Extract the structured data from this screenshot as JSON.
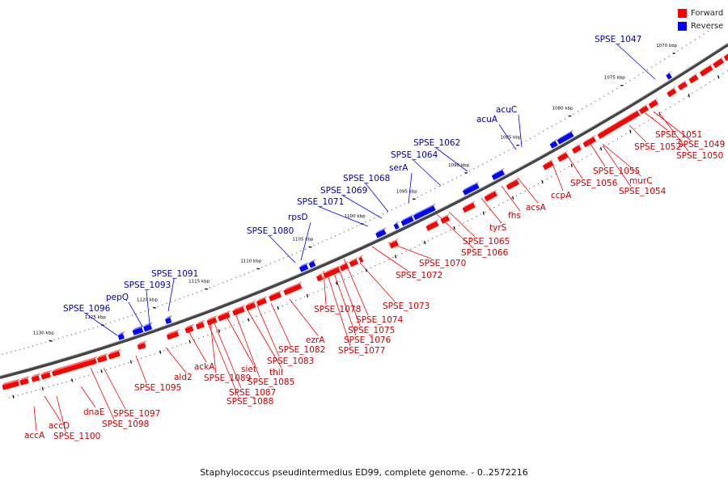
{
  "caption": "Staphylococcus pseudintermedius ED99, complete genome. - 0..2572216",
  "legend": [
    {
      "label": "Forward",
      "color": "#ff0000"
    },
    {
      "label": "Reverse",
      "color": "#0000ff"
    }
  ],
  "colors": {
    "forward": "#ff0000",
    "reverse": "#0000ff",
    "backbone": "#666666",
    "label_forward": "#cc0000",
    "label_reverse": "#0000aa"
  },
  "ticks": [
    {
      "label": "1070 kbp",
      "kbp": 1070
    },
    {
      "label": "1075 kbp",
      "kbp": 1075
    },
    {
      "label": "1080 kbp",
      "kbp": 1080
    },
    {
      "label": "1085 kbp",
      "kbp": 1085
    },
    {
      "label": "1090 kbp",
      "kbp": 1090
    },
    {
      "label": "1095 kbp",
      "kbp": 1095
    },
    {
      "label": "1100 kbp",
      "kbp": 1100
    },
    {
      "label": "1105 kbp",
      "kbp": 1105
    },
    {
      "label": "1110 kbp",
      "kbp": 1110
    },
    {
      "label": "1115 kbp",
      "kbp": 1115
    },
    {
      "label": "1120 kbp",
      "kbp": 1120
    },
    {
      "label": "1125 kbp",
      "kbp": 1125
    },
    {
      "label": "1130 kbp",
      "kbp": 1130
    }
  ],
  "forward_labels": [
    "SPSE_1051",
    "SPSE_1049",
    "SPSE_1052",
    "SPSE_1050",
    "SPSE_1055",
    "murC",
    "SPSE_1056",
    "SPSE_1054",
    "ccpA",
    "acsA",
    "fhs",
    "tyrS",
    "SPSE_1065",
    "SPSE_1066",
    "SPSE_1070",
    "SPSE_1072",
    "SPSE_1073",
    "SPSE_1074",
    "SPSE_1078",
    "SPSE_1075",
    "SPSE_1076",
    "SPSE_1077",
    "ezrA",
    "SPSE_1082",
    "SPSE_1083",
    "thiI",
    "SPSE_1085",
    "siet",
    "SPSE_1089",
    "SPSE_1087",
    "SPSE_1088",
    "ackA",
    "ald2",
    "SPSE_1095",
    "SPSE_1097",
    "SPSE_1098",
    "dnaE",
    "accD",
    "SPSE_1100",
    "accA"
  ],
  "reverse_labels": [
    "SPSE_1047",
    "acuC",
    "acuA",
    "SPSE_1062",
    "SPSE_1064",
    "serA",
    "SPSE_1068",
    "SPSE_1069",
    "SPSE_1071",
    "rpsD",
    "SPSE_1080",
    "SPSE_1091",
    "SPSE_1093",
    "pepQ",
    "SPSE_1096"
  ]
}
